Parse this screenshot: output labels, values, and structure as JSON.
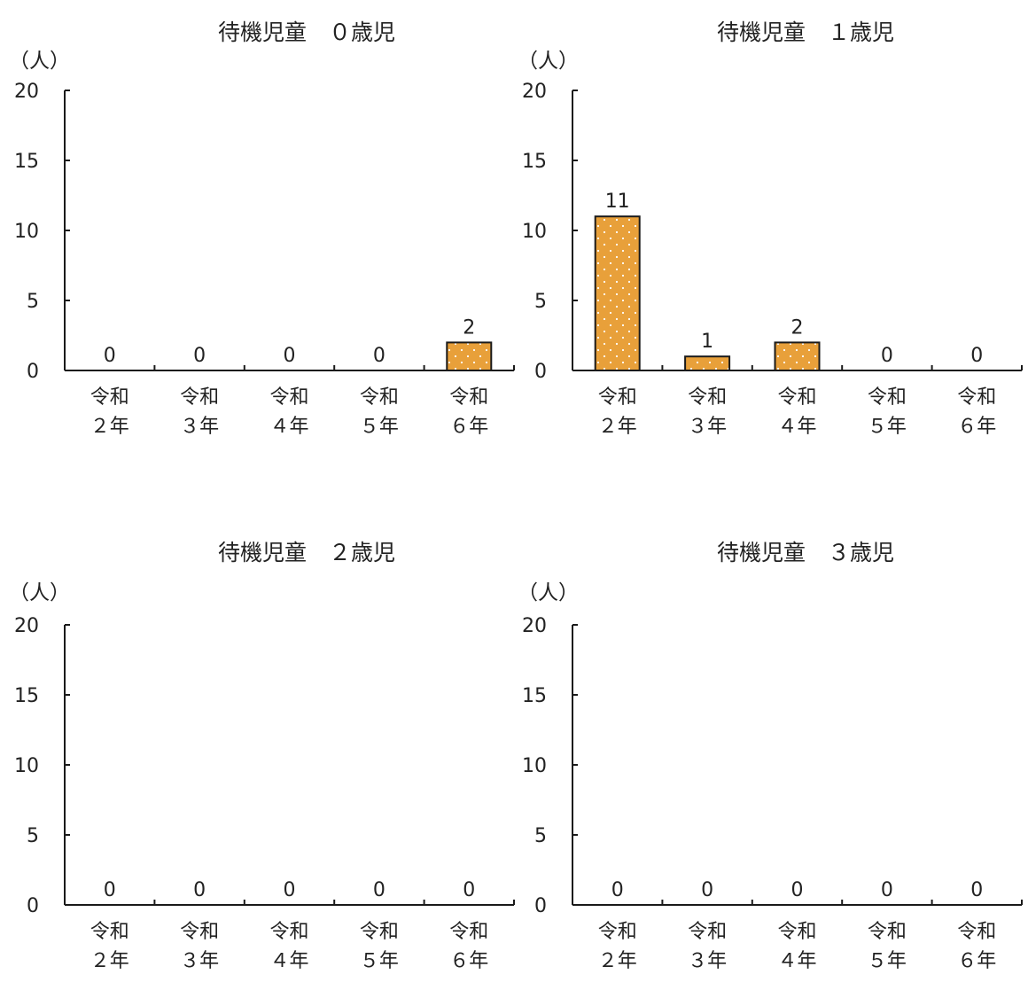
{
  "colors": {
    "bar_fill": "#E8A03A",
    "bar_stroke": "#1a1a1a",
    "dot": "#ffffff",
    "axis": "#1a1a1a"
  },
  "chart_data": [
    {
      "type": "bar",
      "title": "待機児童　０歳児",
      "ylabel": "（人）",
      "ylim": [
        0,
        20
      ],
      "yticks": [
        "0",
        "5",
        "10",
        "15",
        "20"
      ],
      "categories": [
        [
          "令和",
          "２年"
        ],
        [
          "令和",
          "３年"
        ],
        [
          "令和",
          "４年"
        ],
        [
          "令和",
          "５年"
        ],
        [
          "令和",
          "６年"
        ]
      ],
      "values": [
        0,
        0,
        0,
        0,
        2
      ],
      "value_labels": [
        "0",
        "0",
        "0",
        "0",
        "2"
      ]
    },
    {
      "type": "bar",
      "title": "待機児童　１歳児",
      "ylabel": "（人）",
      "ylim": [
        0,
        20
      ],
      "yticks": [
        "0",
        "5",
        "10",
        "15",
        "20"
      ],
      "categories": [
        [
          "令和",
          "２年"
        ],
        [
          "令和",
          "３年"
        ],
        [
          "令和",
          "４年"
        ],
        [
          "令和",
          "５年"
        ],
        [
          "令和",
          "６年"
        ]
      ],
      "values": [
        11,
        1,
        2,
        0,
        0
      ],
      "value_labels": [
        "11",
        "1",
        "2",
        "0",
        "0"
      ]
    },
    {
      "type": "bar",
      "title": "待機児童　２歳児",
      "ylabel": "（人）",
      "ylim": [
        0,
        20
      ],
      "yticks": [
        "0",
        "5",
        "10",
        "15",
        "20"
      ],
      "categories": [
        [
          "令和",
          "２年"
        ],
        [
          "令和",
          "３年"
        ],
        [
          "令和",
          "４年"
        ],
        [
          "令和",
          "５年"
        ],
        [
          "令和",
          "６年"
        ]
      ],
      "values": [
        0,
        0,
        0,
        0,
        0
      ],
      "value_labels": [
        "0",
        "0",
        "0",
        "0",
        "0"
      ]
    },
    {
      "type": "bar",
      "title": "待機児童　３歳児",
      "ylabel": "（人）",
      "ylim": [
        0,
        20
      ],
      "yticks": [
        "0",
        "5",
        "10",
        "15",
        "20"
      ],
      "categories": [
        [
          "令和",
          "２年"
        ],
        [
          "令和",
          "３年"
        ],
        [
          "令和",
          "４年"
        ],
        [
          "令和",
          "５年"
        ],
        [
          "令和",
          "６年"
        ]
      ],
      "values": [
        0,
        0,
        0,
        0,
        0
      ],
      "value_labels": [
        "0",
        "0",
        "0",
        "0",
        "0"
      ]
    }
  ]
}
